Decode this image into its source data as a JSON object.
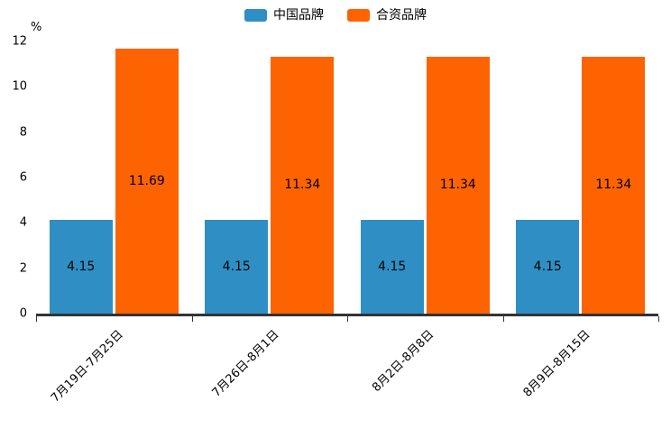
{
  "chart_data": {
    "type": "bar",
    "title": "",
    "xlabel": "",
    "ylabel": "%",
    "ylim": [
      0,
      12
    ],
    "yticks": [
      0,
      2,
      4,
      6,
      8,
      10,
      12
    ],
    "grid": false,
    "legend_position": "top",
    "value_labels": true,
    "axis_color": "#333333",
    "categories": [
      "7月19日-7月25日",
      "7月26日-8月1日",
      "8月2日-8月8日",
      "8月9日-8月15日"
    ],
    "series": [
      {
        "name": "中国品牌",
        "color": "#2f8fc5",
        "values": [
          4.15,
          4.15,
          4.15,
          4.15
        ]
      },
      {
        "name": "合资品牌",
        "color": "#fe6302",
        "values": [
          11.69,
          11.34,
          11.34,
          11.34
        ]
      }
    ]
  }
}
